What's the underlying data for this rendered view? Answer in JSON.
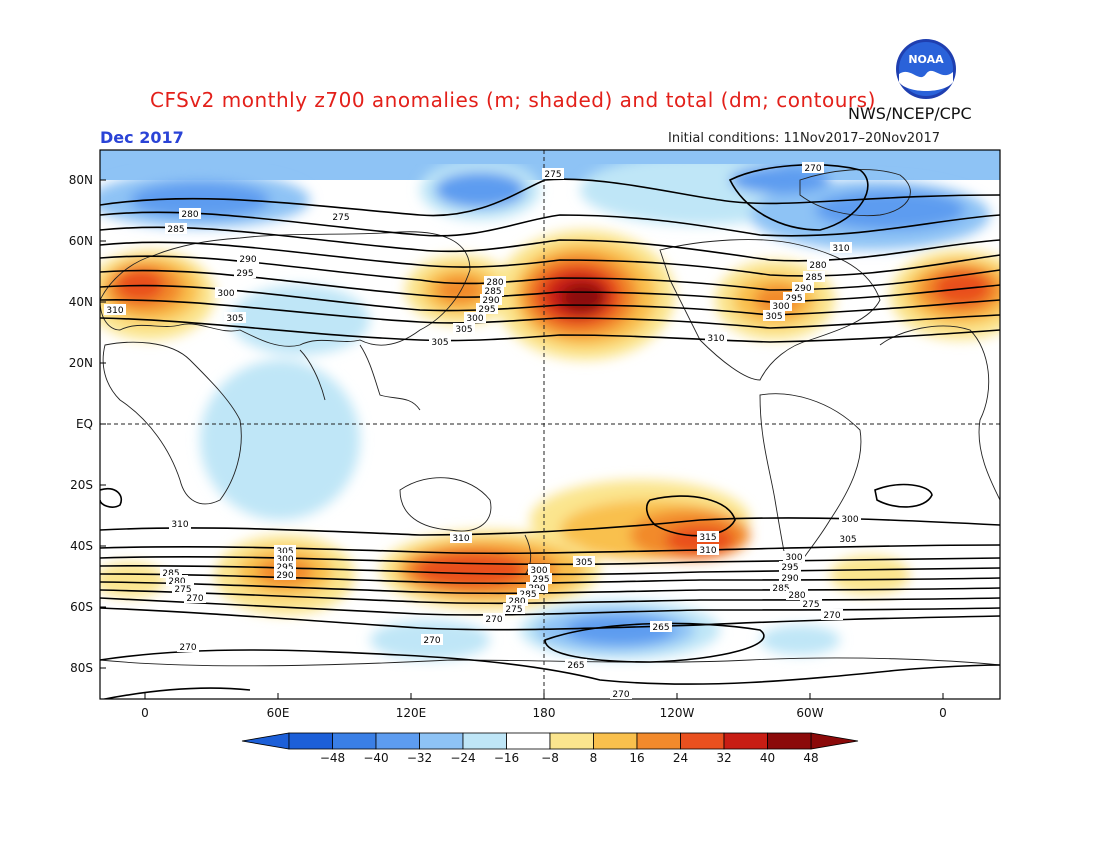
{
  "header": {
    "title": "CFSv2 monthly z700 anomalies (m; shaded) and total (dm; contours)",
    "agency": "NWS/NCEP/CPC",
    "month": "Dec 2017",
    "initial_conditions": "Initial conditions: 11Nov2017–20Nov2017",
    "logo_text": "NOAA"
  },
  "map": {
    "lat_ticks": [
      "80N",
      "60N",
      "40N",
      "20N",
      "EQ",
      "20S",
      "40S",
      "60S",
      "80S"
    ],
    "lon_ticks": [
      "0",
      "60E",
      "120E",
      "180",
      "120W",
      "60W",
      "0"
    ],
    "contour_labels": [
      "275",
      "270",
      "280",
      "285",
      "290",
      "295",
      "300",
      "305",
      "310",
      "280",
      "285",
      "290",
      "295",
      "300",
      "305",
      "310",
      "275",
      "280",
      "285",
      "290",
      "295",
      "300",
      "305",
      "310",
      "310",
      "305",
      "300",
      "295",
      "290",
      "285",
      "280",
      "275",
      "270",
      "310",
      "315",
      "310",
      "305",
      "300",
      "295",
      "290",
      "285",
      "280",
      "275",
      "270",
      "305",
      "300",
      "295",
      "290",
      "285",
      "280",
      "275",
      "270",
      "270",
      "270",
      "265",
      "265",
      "270",
      "310",
      "305",
      "300",
      "295",
      "290",
      "285",
      "280",
      "275",
      "270",
      "270"
    ]
  },
  "colorbar": {
    "labels": [
      "−48",
      "−40",
      "−32",
      "−24",
      "−16",
      "−8",
      "8",
      "16",
      "24",
      "32",
      "40",
      "48"
    ],
    "colors": [
      "#1c5fd8",
      "#3a7fe6",
      "#5d9cf0",
      "#8ec3f5",
      "#bfe6f7",
      "#ffffff",
      "#fbe58e",
      "#f9c04d",
      "#f28a2c",
      "#e9501f",
      "#c81d14",
      "#8b0a0a"
    ],
    "end_low_color": "#1c5fd8",
    "end_high_color": "#8b0a0a"
  }
}
